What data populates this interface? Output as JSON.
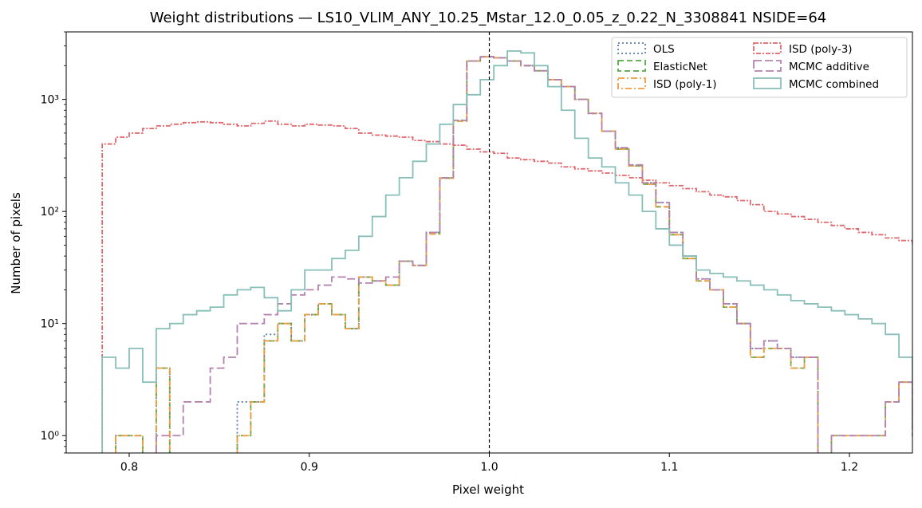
{
  "chart_data": {
    "type": "histogram",
    "title": "Weight distributions — LS10_VLIM_ANY_10.25_Mstar_12.0_0.05_z_0.22_N_3308841  NSIDE=64",
    "xlabel": "Pixel weight",
    "ylabel": "Number of pixels",
    "xlim": [
      0.765,
      1.235
    ],
    "ylim": [
      0.7,
      4000
    ],
    "yscale": "log",
    "xticks": [
      "0.8",
      "0.9",
      "1.0",
      "1.1",
      "1.2"
    ],
    "yticks": [
      "10⁰",
      "10¹",
      "10²",
      "10³"
    ],
    "reference_line_x": 1.0,
    "bin_edges_start": 0.785,
    "bin_width": 0.0075,
    "legend_position": "top-right",
    "series": [
      {
        "name": "OLS",
        "color": "#5b7fb0",
        "dash": "2,3",
        "counts": [
          0,
          1,
          1,
          0,
          4,
          0,
          0,
          0,
          0,
          0,
          2,
          2,
          8,
          10,
          7,
          12,
          15,
          12,
          9,
          26,
          24,
          22,
          36,
          33,
          65,
          200,
          650,
          2200,
          2400,
          2350,
          2200,
          2000,
          1800,
          1500,
          1300,
          1000,
          750,
          520,
          370,
          260,
          180,
          120,
          65,
          40,
          25,
          20,
          15,
          10,
          6,
          7,
          6,
          5,
          5,
          0,
          0,
          0,
          0,
          0,
          0,
          0,
          0,
          0,
          0,
          0,
          0
        ]
      },
      {
        "name": "ElasticNet",
        "color": "#55a84a",
        "dash": "7,4",
        "counts": [
          0,
          1,
          1,
          0,
          4,
          0,
          0,
          0,
          0,
          0,
          1,
          2,
          7,
          10,
          7,
          12,
          15,
          12,
          9,
          26,
          24,
          22,
          36,
          33,
          63,
          198,
          640,
          2200,
          2400,
          2350,
          2200,
          2000,
          1800,
          1500,
          1300,
          1000,
          750,
          520,
          360,
          255,
          175,
          110,
          62,
          38,
          24,
          20,
          14,
          10,
          5,
          6,
          6,
          4,
          5,
          0,
          1,
          1,
          1,
          1,
          2,
          3,
          1,
          0,
          0,
          0,
          0
        ]
      },
      {
        "name": "ISD (poly-1)",
        "color": "#f09d3f",
        "dash": "8,3,2,3",
        "counts": [
          0,
          1,
          1,
          0,
          4,
          0,
          0,
          0,
          0,
          0,
          1,
          2,
          7,
          10,
          7,
          12,
          15,
          12,
          9,
          26,
          24,
          22,
          36,
          33,
          63,
          198,
          640,
          2200,
          2400,
          2350,
          2200,
          2000,
          1800,
          1500,
          1300,
          1000,
          750,
          520,
          360,
          255,
          175,
          110,
          62,
          38,
          24,
          20,
          14,
          10,
          5,
          6,
          6,
          4,
          5,
          0,
          1,
          1,
          1,
          1,
          2,
          3,
          1,
          0,
          0,
          0,
          0
        ]
      },
      {
        "name": "ISD (poly-3)",
        "color": "#e0686c",
        "dash": "6,2,2,2",
        "counts": [
          400,
          460,
          500,
          550,
          580,
          600,
          620,
          630,
          620,
          600,
          580,
          610,
          640,
          600,
          580,
          600,
          590,
          580,
          550,
          500,
          480,
          470,
          460,
          430,
          420,
          400,
          390,
          360,
          340,
          330,
          300,
          290,
          280,
          270,
          250,
          240,
          230,
          220,
          210,
          200,
          190,
          180,
          170,
          160,
          150,
          140,
          135,
          125,
          115,
          100,
          95,
          90,
          85,
          80,
          75,
          70,
          65,
          62,
          58,
          55,
          52,
          50,
          45,
          42,
          0
        ]
      },
      {
        "name": "MCMC additive",
        "color": "#b582ad",
        "dash": "10,4",
        "counts": [
          0,
          0,
          0,
          0,
          1,
          1,
          2,
          2,
          4,
          5,
          10,
          10,
          12,
          15,
          18,
          20,
          22,
          26,
          25,
          23,
          24,
          26,
          36,
          33,
          65,
          200,
          650,
          2200,
          2400,
          2350,
          2200,
          2000,
          1800,
          1500,
          1300,
          1000,
          750,
          520,
          370,
          260,
          180,
          120,
          65,
          40,
          25,
          20,
          15,
          10,
          6,
          7,
          6,
          5,
          5,
          0,
          1,
          1,
          1,
          1,
          2,
          3,
          1,
          0,
          0,
          0,
          0
        ]
      },
      {
        "name": "MCMC combined",
        "color": "#88bfb9",
        "dash": "",
        "counts": [
          5,
          4,
          6,
          3,
          9,
          10,
          12,
          13,
          14,
          18,
          20,
          21,
          17,
          13,
          20,
          30,
          30,
          38,
          45,
          60,
          90,
          140,
          200,
          280,
          400,
          600,
          900,
          1100,
          1500,
          2000,
          2700,
          2600,
          2000,
          1300,
          800,
          450,
          300,
          250,
          180,
          140,
          100,
          70,
          50,
          40,
          30,
          28,
          26,
          24,
          22,
          20,
          18,
          16,
          15,
          14,
          13,
          12,
          11,
          10,
          8,
          5,
          3,
          2,
          1,
          0,
          0
        ]
      }
    ]
  }
}
